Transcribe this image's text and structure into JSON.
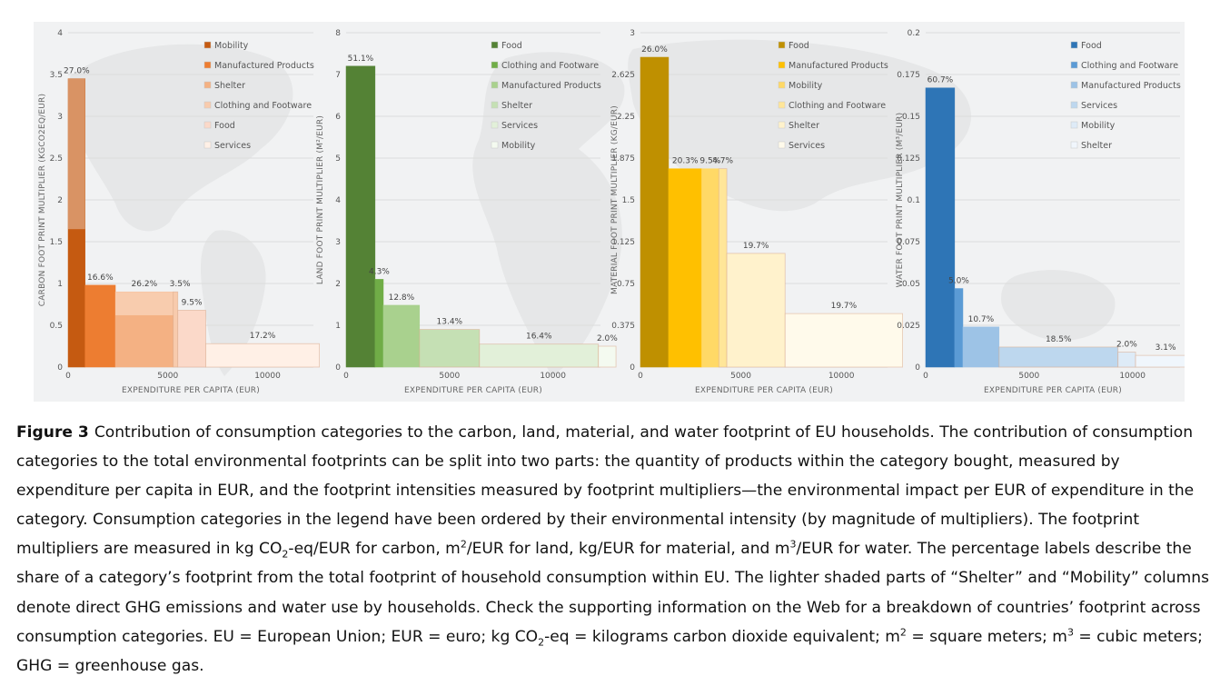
{
  "caption": {
    "label": "Figure 3",
    "parts": [
      "Contribution of consumption categories to the carbon, land, material, and water footprint of EU households. The contribution of consumption categories to the total environmental footprints can be split into two parts: the quantity of products within the category bought, measured by expenditure per capita in EUR, and the footprint intensities measured by footprint multipliers—the environmental impact per EUR of expenditure in the category. Consumption categories in the legend have been ordered by their environmental intensity (by magnitude of multipliers). The footprint multipliers are measured in kg CO",
      "2",
      "-eq/EUR for carbon, m",
      "2",
      "/EUR for land, kg/EUR for material, and m",
      "3",
      "/EUR for water. The percentage labels describe the share of a category’s footprint from the total footprint of household consumption within EU. The lighter shaded parts of “Shelter” and “Mobility” columns denote direct GHG emissions and water use by households. Check the supporting information on the Web for a breakdown of countries’ footprint across consumption categories. EU = European Union; EUR = euro; kg CO",
      "2",
      "-eq = kilograms carbon dioxide equivalent; m",
      "2",
      " = square meters; m",
      "3",
      " = cubic meters; GHG = greenhouse gas."
    ]
  },
  "chart_data": [
    {
      "type": "bar",
      "variant": "variable-width",
      "xlabel": "EXPENDITURE PER CAPITA (EUR)",
      "ylabel": "CARBON FOOT PRINT MULTIPLIER (KGCO2EQ/EUR)",
      "ylim": [
        0,
        4
      ],
      "yticks": [
        "0",
        "0.5",
        "1",
        "1.5",
        "2",
        "2.5",
        "3",
        "3.5",
        "4"
      ],
      "xlim": [
        0,
        12300
      ],
      "xticks": [
        "0",
        "5000",
        "10000"
      ],
      "grid": true,
      "legend_position": "top-right",
      "categories": [
        {
          "name": "Mobility",
          "expenditure": 850,
          "multiplier": 3.45,
          "share": "27.0%",
          "direct_part": 1.8,
          "color": "#c55a11"
        },
        {
          "name": "Manufactured Products",
          "expenditure": 1520,
          "multiplier": 0.98,
          "share": "16.6%",
          "color": "#ed7d31"
        },
        {
          "name": "Shelter",
          "expenditure": 2900,
          "multiplier": 0.9,
          "share": "26.2%",
          "direct_part": 0.28,
          "color": "#f4b183",
          "share2": "3.5%"
        },
        {
          "name": "Clothing and Footware",
          "expenditure": 230,
          "multiplier": 0.9,
          "share": "",
          "color": "#f8cbad"
        },
        {
          "name": "Food",
          "expenditure": 1400,
          "multiplier": 0.68,
          "share": "9.5%",
          "color": "#fbd9c9"
        },
        {
          "name": "Services",
          "expenditure": 5700,
          "multiplier": 0.28,
          "share": "17.2%",
          "color": "#fff0e6"
        }
      ]
    },
    {
      "type": "bar",
      "variant": "variable-width",
      "xlabel": "EXPENDITURE PER CAPITA (EUR)",
      "ylabel": "LAND FOOT PRINT MULTIPLIER (M²/EUR)",
      "ylim": [
        0,
        8
      ],
      "yticks": [
        "0",
        "1",
        "2",
        "3",
        "4",
        "5",
        "6",
        "7",
        "8"
      ],
      "xlim": [
        0,
        12300
      ],
      "xticks": [
        "0",
        "5000",
        "10000"
      ],
      "grid": true,
      "legend_position": "top-right",
      "categories": [
        {
          "name": "Food",
          "expenditure": 1400,
          "multiplier": 7.2,
          "share": "51.1%",
          "color": "#548235"
        },
        {
          "name": "Clothing and Footware",
          "expenditure": 400,
          "multiplier": 2.1,
          "share": "4.3%",
          "color": "#70ad47"
        },
        {
          "name": "Manufactured Products",
          "expenditure": 1750,
          "multiplier": 1.48,
          "share": "12.8%",
          "color": "#a9d18e"
        },
        {
          "name": "Shelter",
          "expenditure": 2900,
          "multiplier": 0.9,
          "share": "13.4%",
          "color": "#c5e0b4"
        },
        {
          "name": "Services",
          "expenditure": 5750,
          "multiplier": 0.55,
          "share": "16.4%",
          "color": "#e2f0d9"
        },
        {
          "name": "Mobility",
          "expenditure": 850,
          "multiplier": 0.5,
          "share": "2.0%",
          "color": "#f4faf0"
        }
      ]
    },
    {
      "type": "bar",
      "variant": "variable-width",
      "xlabel": "EXPENDITURE PER CAPITA (EUR)",
      "ylabel": "MATERIAL FOOT PRINT MULTIPLIER (KG/EUR)",
      "ylim": [
        0,
        3
      ],
      "yticks": [
        "0",
        "0.375",
        "0.75",
        "1.125",
        "1.5",
        "1.875",
        "2.25",
        "2.625",
        "3"
      ],
      "xlim": [
        0,
        12300
      ],
      "xticks": [
        "0",
        "5000",
        "10000"
      ],
      "grid": true,
      "legend_position": "top-right",
      "categories": [
        {
          "name": "Food",
          "expenditure": 1400,
          "multiplier": 2.78,
          "share": "26.0%",
          "color": "#bf9000"
        },
        {
          "name": "Manufactured Products",
          "expenditure": 1650,
          "multiplier": 1.78,
          "share": "20.3%",
          "color": "#ffc000"
        },
        {
          "name": "Mobility",
          "expenditure": 850,
          "multiplier": 1.78,
          "share": "9.5%",
          "color": "#ffd966"
        },
        {
          "name": "Clothing and Footware",
          "expenditure": 400,
          "multiplier": 1.78,
          "share": "4.7%",
          "color": "#ffe699"
        },
        {
          "name": "Shelter",
          "expenditure": 2900,
          "multiplier": 1.02,
          "share": "19.7%",
          "color": "#fff2cc"
        },
        {
          "name": "Services",
          "expenditure": 5850,
          "multiplier": 0.48,
          "share": "19.7%",
          "color": "#fffaeb"
        }
      ]
    },
    {
      "type": "bar",
      "variant": "variable-width",
      "xlabel": "EXPENDITURE PER CAPITA (EUR)",
      "ylabel": "WATER FOOT PRINT MULTIPLIER (M³/EUR)",
      "ylim": [
        0,
        0.2
      ],
      "yticks": [
        "0",
        "0.025",
        "0.05",
        "0.075",
        "0.1",
        "0.125",
        "0.15",
        "0.175",
        "0.2"
      ],
      "xlim": [
        0,
        12300
      ],
      "xticks": [
        "0",
        "5000",
        "10000"
      ],
      "grid": true,
      "legend_position": "top-right",
      "categories": [
        {
          "name": "Food",
          "expenditure": 1400,
          "multiplier": 0.167,
          "share": "60.7%",
          "color": "#2e75b6"
        },
        {
          "name": "Clothing and Footware",
          "expenditure": 400,
          "multiplier": 0.047,
          "share": "5.0%",
          "color": "#5b9bd5"
        },
        {
          "name": "Manufactured Products",
          "expenditure": 1750,
          "multiplier": 0.024,
          "share": "10.7%",
          "color": "#9dc3e6"
        },
        {
          "name": "Services",
          "expenditure": 5750,
          "multiplier": 0.012,
          "share": "18.5%",
          "color": "#bdd7ee"
        },
        {
          "name": "Mobility",
          "expenditure": 850,
          "multiplier": 0.009,
          "share": "2.0%",
          "color": "#deebf7"
        },
        {
          "name": "Shelter",
          "expenditure": 2900,
          "multiplier": 0.007,
          "share": "3.1%",
          "color": "#f0f6fc"
        }
      ]
    }
  ]
}
